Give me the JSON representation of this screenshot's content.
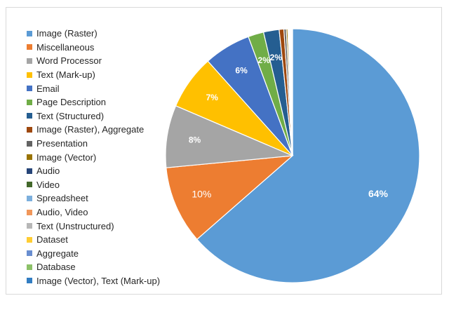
{
  "chart_data": {
    "type": "pie",
    "title": "",
    "legend_position": "left",
    "slices": [
      {
        "name": "Image (Raster)",
        "value": 64,
        "color": "#5b9bd5",
        "label": "64%"
      },
      {
        "name": "Miscellaneous",
        "value": 10,
        "color": "#ed7d31",
        "label": "10%"
      },
      {
        "name": "Word Processor",
        "value": 8,
        "color": "#a5a5a5",
        "label": "8%"
      },
      {
        "name": "Text (Mark-up)",
        "value": 7,
        "color": "#ffc000",
        "label": "7%"
      },
      {
        "name": "Email",
        "value": 6,
        "color": "#4472c4",
        "label": "6%"
      },
      {
        "name": "Page Description",
        "value": 2,
        "color": "#70ad47",
        "label": "2%"
      },
      {
        "name": "Text (Structured)",
        "value": 2,
        "color": "#255e91",
        "label": "2%"
      },
      {
        "name": "Image (Raster), Aggregate",
        "value": 0.6,
        "color": "#9e480e",
        "label": ""
      },
      {
        "name": "Presentation",
        "value": 0.3,
        "color": "#636363",
        "label": ""
      },
      {
        "name": "Image (Vector)",
        "value": 0.2,
        "color": "#997300",
        "label": ""
      },
      {
        "name": "Audio",
        "value": 0.1,
        "color": "#264478",
        "label": ""
      },
      {
        "name": "Video",
        "value": 0.1,
        "color": "#43682b",
        "label": ""
      },
      {
        "name": "Spreadsheet",
        "value": 0.1,
        "color": "#7cafdd",
        "label": ""
      },
      {
        "name": "Audio, Video",
        "value": 0.05,
        "color": "#f1975a",
        "label": ""
      },
      {
        "name": "Text (Unstructured)",
        "value": 0.05,
        "color": "#b7b7b7",
        "label": ""
      },
      {
        "name": "Dataset",
        "value": 0.05,
        "color": "#ffcd33",
        "label": ""
      },
      {
        "name": "Aggregate",
        "value": 0.05,
        "color": "#698ed0",
        "label": ""
      },
      {
        "name": "Database",
        "value": 0.05,
        "color": "#8cc168",
        "label": ""
      },
      {
        "name": "Image (Vector), Text (Mark-up)",
        "value": 0.05,
        "color": "#327dc2",
        "label": ""
      }
    ]
  }
}
